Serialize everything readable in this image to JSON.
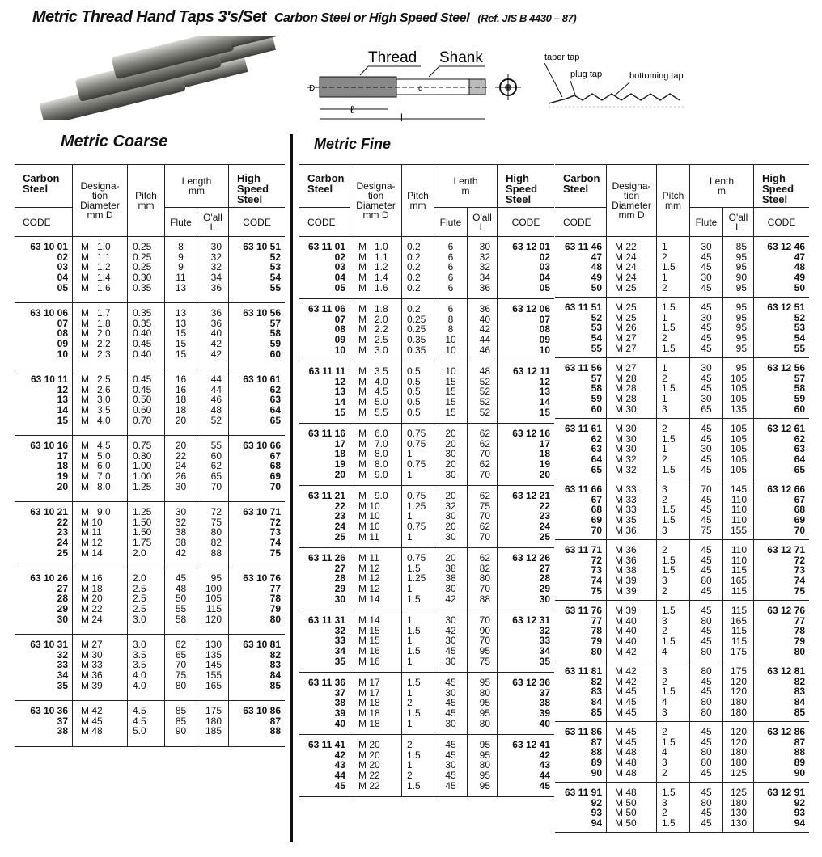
{
  "header": {
    "title": "Metric Thread Hand Taps  3's/Set",
    "subtitle": "Carbon Steel or  High Speed Steel",
    "reference": "(Ref. JIS B 4430 – 87)"
  },
  "diagram": {
    "thread": "Thread",
    "shank": "Shank",
    "dim_D": "D",
    "dim_d": "d",
    "dim_l": "ℓ",
    "dim_L": "l",
    "taper": "taper tap",
    "plug": "plug tap",
    "bottoming": "bottoming tap"
  },
  "sections": {
    "coarse": "Metric Coarse",
    "fine": "Metric Fine"
  },
  "headers": {
    "coarse": {
      "carbon": "Carbon\nSteel",
      "code": "CODE",
      "desig": "Designa-\ntion\nDiameter\nmm  D",
      "pitch": "Pitch\nmm",
      "length": "Length\nmm",
      "flute": "Flute",
      "oall": "O'all\nL",
      "hss": "High\nSpeed\nSteel",
      "hss_code": "CODE"
    },
    "fine": {
      "carbon": "Carbon\nSteel",
      "code": "CODE",
      "desig": "Designa-\ntion\nDiameter\nmm  D",
      "pitch": "Pitch\nmm",
      "length": "Lenth\nm",
      "flute": "Flute",
      "oall": "O'all\nL",
      "hss": "High\nSpeed\nSteel",
      "hss_code": "CODE"
    }
  },
  "tables": {
    "coarse": [
      [
        [
          "63 10 01",
          "M   1.0",
          "0.25",
          "8",
          "30",
          "63 10 51"
        ],
        [
          "02",
          "M   1.1",
          "0.25",
          "9",
          "32",
          "52"
        ],
        [
          "03",
          "M   1.2",
          "0.25",
          "9",
          "32",
          "53"
        ],
        [
          "04",
          "M   1.4",
          "0.30",
          "11",
          "34",
          "54"
        ],
        [
          "05",
          "M   1.6",
          "0.35",
          "13",
          "36",
          "55"
        ]
      ],
      [
        [
          "63 10 06",
          "M   1.7",
          "0.35",
          "13",
          "36",
          "63 10 56"
        ],
        [
          "07",
          "M   1.8",
          "0.35",
          "13",
          "36",
          "57"
        ],
        [
          "08",
          "M   2.0",
          "0.40",
          "15",
          "40",
          "58"
        ],
        [
          "09",
          "M   2.2",
          "0.45",
          "15",
          "42",
          "59"
        ],
        [
          "10",
          "M   2.3",
          "0.40",
          "15",
          "42",
          "60"
        ]
      ],
      [
        [
          "63 10 11",
          "M   2.5",
          "0.45",
          "16",
          "44",
          "63 10 61"
        ],
        [
          "12",
          "M   2.6",
          "0.45",
          "16",
          "44",
          "62"
        ],
        [
          "13",
          "M   3.0",
          "0.50",
          "18",
          "46",
          "63"
        ],
        [
          "14",
          "M   3.5",
          "0.60",
          "18",
          "48",
          "64"
        ],
        [
          "15",
          "M   4.0",
          "0.70",
          "20",
          "52",
          "65"
        ]
      ],
      [
        [
          "63 10 16",
          "M   4.5",
          "0.75",
          "20",
          "55",
          "63 10 66"
        ],
        [
          "17",
          "M   5.0",
          "0.80",
          "22",
          "60",
          "67"
        ],
        [
          "18",
          "M   6.0",
          "1.00",
          "24",
          "62",
          "68"
        ],
        [
          "19",
          "M   7.0",
          "1.00",
          "26",
          "65",
          "69"
        ],
        [
          "20",
          "M   8.0",
          "1.25",
          "30",
          "70",
          "70"
        ]
      ],
      [
        [
          "63 10 21",
          "M   9.0",
          "1.25",
          "30",
          "72",
          "63 10 71"
        ],
        [
          "22",
          "M 10",
          "1.50",
          "32",
          "75",
          "72"
        ],
        [
          "23",
          "M 11",
          "1.50",
          "38",
          "80",
          "73"
        ],
        [
          "24",
          "M 12",
          "1.75",
          "38",
          "82",
          "74"
        ],
        [
          "25",
          "M 14",
          "2.0",
          "42",
          "88",
          "75"
        ]
      ],
      [
        [
          "63 10 26",
          "M 16",
          "2.0",
          "45",
          "95",
          "63 10 76"
        ],
        [
          "27",
          "M 18",
          "2.5",
          "48",
          "100",
          "77"
        ],
        [
          "28",
          "M 20",
          "2.5",
          "50",
          "105",
          "78"
        ],
        [
          "29",
          "M 22",
          "2.5",
          "55",
          "115",
          "79"
        ],
        [
          "30",
          "M 24",
          "3.0",
          "58",
          "120",
          "80"
        ]
      ],
      [
        [
          "63 10 31",
          "M 27",
          "3.0",
          "62",
          "130",
          "63 10 81"
        ],
        [
          "32",
          "M 30",
          "3.5",
          "65",
          "135",
          "82"
        ],
        [
          "33",
          "M 33",
          "3.5",
          "70",
          "145",
          "83"
        ],
        [
          "34",
          "M 36",
          "4.0",
          "75",
          "155",
          "84"
        ],
        [
          "35",
          "M 39",
          "4.0",
          "80",
          "165",
          "85"
        ]
      ],
      [
        [
          "63 10 36",
          "M 42",
          "4.5",
          "85",
          "175",
          "63 10 86"
        ],
        [
          "37",
          "M 45",
          "4.5",
          "85",
          "180",
          "87"
        ],
        [
          "38",
          "M 48",
          "5.0",
          "90",
          "185",
          "88"
        ]
      ]
    ],
    "fine_left": [
      [
        [
          "63 11 01",
          "M   1.0",
          "0.2",
          "6",
          "30",
          "63 12 01"
        ],
        [
          "02",
          "M   1.1",
          "0.2",
          "6",
          "32",
          "02"
        ],
        [
          "03",
          "M   1.2",
          "0.2",
          "6",
          "32",
          "03"
        ],
        [
          "04",
          "M   1.4",
          "0.2",
          "6",
          "34",
          "04"
        ],
        [
          "05",
          "M   1.6",
          "0.2",
          "6",
          "36",
          "05"
        ]
      ],
      [
        [
          "63 11 06",
          "M   1.8",
          "0.2",
          "6",
          "36",
          "63 12 06"
        ],
        [
          "07",
          "M   2.0",
          "0.25",
          "8",
          "40",
          "07"
        ],
        [
          "08",
          "M   2.2",
          "0.25",
          "8",
          "42",
          "08"
        ],
        [
          "09",
          "M   2.5",
          "0.35",
          "10",
          "44",
          "09"
        ],
        [
          "10",
          "M   3.0",
          "0.35",
          "10",
          "46",
          "10"
        ]
      ],
      [
        [
          "63 11 11",
          "M   3.5",
          "0.5",
          "10",
          "48",
          "63 12 11"
        ],
        [
          "12",
          "M   4.0",
          "0.5",
          "15",
          "52",
          "12"
        ],
        [
          "13",
          "M   4.5",
          "0.5",
          "15",
          "52",
          "13"
        ],
        [
          "14",
          "M   5.0",
          "0.5",
          "15",
          "52",
          "14"
        ],
        [
          "15",
          "M   5.5",
          "0.5",
          "15",
          "52",
          "15"
        ]
      ],
      [
        [
          "63 11 16",
          "M   6.0",
          "0.75",
          "20",
          "62",
          "63 12 16"
        ],
        [
          "17",
          "M   7.0",
          "0.75",
          "20",
          "62",
          "17"
        ],
        [
          "18",
          "M   8.0",
          "1",
          "30",
          "70",
          "18"
        ],
        [
          "19",
          "M   8.0",
          "0.75",
          "20",
          "62",
          "19"
        ],
        [
          "20",
          "M   9.0",
          "1",
          "30",
          "70",
          "20"
        ]
      ],
      [
        [
          "63 11 21",
          "M   9.0",
          "0.75",
          "20",
          "62",
          "63 12 21"
        ],
        [
          "22",
          "M 10",
          "1.25",
          "32",
          "75",
          "22"
        ],
        [
          "23",
          "M 10",
          "1",
          "30",
          "70",
          "23"
        ],
        [
          "24",
          "M 10",
          "0.75",
          "20",
          "62",
          "24"
        ],
        [
          "25",
          "M 11",
          "1",
          "30",
          "70",
          "25"
        ]
      ],
      [
        [
          "63 11 26",
          "M 11",
          "0.75",
          "20",
          "62",
          "63 12 26"
        ],
        [
          "27",
          "M 12",
          "1.5",
          "38",
          "82",
          "27"
        ],
        [
          "28",
          "M 12",
          "1.25",
          "38",
          "80",
          "28"
        ],
        [
          "29",
          "M 12",
          "1",
          "30",
          "70",
          "29"
        ],
        [
          "30",
          "M 14",
          "1.5",
          "42",
          "88",
          "30"
        ]
      ],
      [
        [
          "63 11 31",
          "M 14",
          "1",
          "30",
          "70",
          "63 12 31"
        ],
        [
          "32",
          "M 15",
          "1.5",
          "42",
          "90",
          "32"
        ],
        [
          "33",
          "M 15",
          "1",
          "30",
          "70",
          "33"
        ],
        [
          "34",
          "M 16",
          "1.5",
          "45",
          "95",
          "34"
        ],
        [
          "35",
          "M 16",
          "1",
          "30",
          "75",
          "35"
        ]
      ],
      [
        [
          "63 11 36",
          "M 17",
          "1.5",
          "45",
          "95",
          "63 12 36"
        ],
        [
          "37",
          "M 17",
          "1",
          "30",
          "80",
          "37"
        ],
        [
          "38",
          "M 18",
          "2",
          "45",
          "95",
          "38"
        ],
        [
          "39",
          "M 18",
          "1.5",
          "45",
          "95",
          "39"
        ],
        [
          "40",
          "M 18",
          "1",
          "30",
          "80",
          "40"
        ]
      ],
      [
        [
          "63 11 41",
          "M 20",
          "2",
          "45",
          "95",
          "63 12 41"
        ],
        [
          "42",
          "M 20",
          "1.5",
          "45",
          "95",
          "42"
        ],
        [
          "43",
          "M 20",
          "1",
          "30",
          "80",
          "43"
        ],
        [
          "44",
          "M 22",
          "2",
          "45",
          "95",
          "44"
        ],
        [
          "45",
          "M 22",
          "1.5",
          "45",
          "95",
          "45"
        ]
      ]
    ],
    "fine_right": [
      [
        [
          "63 11 46",
          "M 22",
          "1",
          "30",
          "85",
          "63 12 46"
        ],
        [
          "47",
          "M 24",
          "2",
          "45",
          "95",
          "47"
        ],
        [
          "48",
          "M 24",
          "1.5",
          "45",
          "95",
          "48"
        ],
        [
          "49",
          "M 24",
          "1",
          "30",
          "90",
          "49"
        ],
        [
          "50",
          "M 25",
          "2",
          "45",
          "95",
          "50"
        ]
      ],
      [
        [
          "63 11 51",
          "M 25",
          "1.5",
          "45",
          "95",
          "63 12 51"
        ],
        [
          "52",
          "M 25",
          "1",
          "30",
          "95",
          "52"
        ],
        [
          "53",
          "M 26",
          "1.5",
          "45",
          "95",
          "53"
        ],
        [
          "54",
          "M 27",
          "2",
          "45",
          "95",
          "54"
        ],
        [
          "55",
          "M 27",
          "1.5",
          "45",
          "95",
          "55"
        ]
      ],
      [
        [
          "63 11 56",
          "M 27",
          "1",
          "30",
          "95",
          "63 12 56"
        ],
        [
          "57",
          "M 28",
          "2",
          "45",
          "105",
          "57"
        ],
        [
          "58",
          "M 28",
          "1.5",
          "45",
          "105",
          "58"
        ],
        [
          "59",
          "M 28",
          "1",
          "30",
          "105",
          "59"
        ],
        [
          "60",
          "M 30",
          "3",
          "65",
          "135",
          "60"
        ]
      ],
      [
        [
          "63 11 61",
          "M 30",
          "2",
          "45",
          "105",
          "63 12 61"
        ],
        [
          "62",
          "M 30",
          "1.5",
          "45",
          "105",
          "62"
        ],
        [
          "63",
          "M 30",
          "1",
          "30",
          "105",
          "63"
        ],
        [
          "64",
          "M 32",
          "2",
          "45",
          "105",
          "64"
        ],
        [
          "65",
          "M 32",
          "1.5",
          "45",
          "105",
          "65"
        ]
      ],
      [
        [
          "63 11 66",
          "M 33",
          "3",
          "70",
          "145",
          "63 12 66"
        ],
        [
          "67",
          "M 33",
          "2",
          "45",
          "110",
          "67"
        ],
        [
          "68",
          "M 33",
          "1.5",
          "45",
          "110",
          "68"
        ],
        [
          "69",
          "M 35",
          "1.5",
          "45",
          "110",
          "69"
        ],
        [
          "70",
          "M 36",
          "3",
          "75",
          "155",
          "70"
        ]
      ],
      [
        [
          "63 11 71",
          "M 36",
          "2",
          "45",
          "110",
          "63 12 71"
        ],
        [
          "72",
          "M 36",
          "1.5",
          "45",
          "110",
          "72"
        ],
        [
          "73",
          "M 38",
          "1.5",
          "45",
          "115",
          "73"
        ],
        [
          "74",
          "M 39",
          "3",
          "80",
          "165",
          "74"
        ],
        [
          "75",
          "M 39",
          "2",
          "45",
          "115",
          "75"
        ]
      ],
      [
        [
          "63 11 76",
          "M 39",
          "1.5",
          "45",
          "115",
          "63 12 76"
        ],
        [
          "77",
          "M 40",
          "3",
          "80",
          "165",
          "77"
        ],
        [
          "78",
          "M 40",
          "2",
          "45",
          "115",
          "78"
        ],
        [
          "79",
          "M 40",
          "1.5",
          "45",
          "115",
          "79"
        ],
        [
          "80",
          "M 42",
          "4",
          "80",
          "175",
          "80"
        ]
      ],
      [
        [
          "63 11 81",
          "M 42",
          "3",
          "80",
          "175",
          "63 12 81"
        ],
        [
          "82",
          "M 42",
          "2",
          "45",
          "120",
          "82"
        ],
        [
          "83",
          "M 45",
          "1.5",
          "45",
          "120",
          "83"
        ],
        [
          "84",
          "M 45",
          "4",
          "80",
          "180",
          "84"
        ],
        [
          "85",
          "M 45",
          "3",
          "80",
          "180",
          "85"
        ]
      ],
      [
        [
          "63 11 86",
          "M 45",
          "2",
          "45",
          "120",
          "63 12 86"
        ],
        [
          "87",
          "M 45",
          "1.5",
          "45",
          "120",
          "87"
        ],
        [
          "88",
          "M 48",
          "4",
          "80",
          "180",
          "88"
        ],
        [
          "89",
          "M 48",
          "3",
          "80",
          "180",
          "89"
        ],
        [
          "90",
          "M 48",
          "2",
          "45",
          "125",
          "90"
        ]
      ],
      [
        [
          "63 11 91",
          "M 48",
          "1.5",
          "45",
          "125",
          "63 12 91"
        ],
        [
          "92",
          "M 50",
          "3",
          "80",
          "180",
          "92"
        ],
        [
          "93",
          "M 50",
          "2",
          "45",
          "130",
          "93"
        ],
        [
          "94",
          "M 50",
          "1.5",
          "45",
          "130",
          "94"
        ]
      ]
    ]
  }
}
